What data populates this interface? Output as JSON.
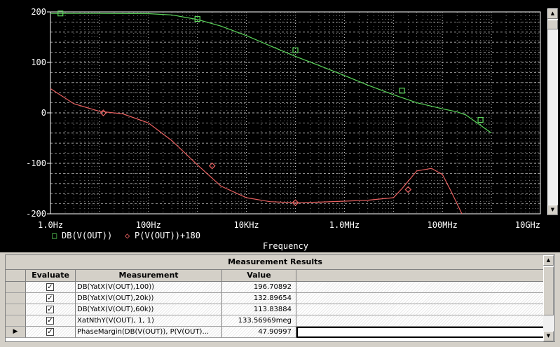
{
  "chart_data": {
    "type": "line",
    "x_scale": "log",
    "xlim": [
      1,
      10000000000
    ],
    "ylim": [
      -200,
      200
    ],
    "y_ticks": [
      "200",
      "100",
      "0",
      "-100",
      "-200"
    ],
    "x_ticks": [
      "1.0Hz",
      "100Hz",
      "10KHz",
      "1.0MHz",
      "100MHz",
      "10GHz"
    ],
    "xlabel": "Frequency",
    "series": [
      {
        "name": "DB(V(OUT))",
        "color": "#5bd65b",
        "marker": "square",
        "x": [
          1,
          10,
          100,
          300,
          1000,
          3000,
          10000,
          30000,
          100000,
          300000,
          1000000,
          3000000,
          10000000,
          30000000,
          100000000,
          200000000,
          300000000,
          1000000000
        ],
        "y": [
          197,
          197,
          196.5,
          194,
          185,
          172,
          153,
          133,
          112,
          94,
          74,
          55,
          36,
          20,
          8,
          2,
          -4,
          -40
        ],
        "marker_x": [
          1.6,
          1000,
          100000,
          15000000,
          600000000
        ],
        "marker_y": [
          197,
          186,
          124,
          44,
          -14
        ]
      },
      {
        "name": "P(V(OUT))+180",
        "color": "#e86060",
        "marker": "diamond",
        "x": [
          1,
          3,
          10,
          30,
          100,
          300,
          1000,
          3000,
          10000,
          30000,
          100000,
          300000,
          1000000,
          3000000,
          10000000,
          15000000,
          30000000,
          60000000,
          100000000,
          150000000,
          250000000
        ],
        "y": [
          48,
          18,
          3,
          -2,
          -20,
          -55,
          -103,
          -145,
          -168,
          -176,
          -178,
          -177,
          -175,
          -173,
          -168,
          -150,
          -115,
          -110,
          -122,
          -155,
          -200
        ],
        "marker_x": [
          12,
          2000,
          100000,
          20000000
        ],
        "marker_y": [
          0,
          -105,
          -178,
          -152
        ]
      }
    ]
  },
  "legend": {
    "db_label": "DB(V(OUT))",
    "phase_label": "P(V(OUT))+180",
    "db_marker": "□",
    "phase_marker": "◇"
  },
  "results": {
    "title": "Measurement Results",
    "headers": {
      "evaluate": "Evaluate",
      "measurement": "Measurement",
      "value": "Value"
    },
    "rows": [
      {
        "checked": "✓",
        "measurement": "DB(YatX(V(OUT),100))",
        "value": "196.70892",
        "selector": ""
      },
      {
        "checked": "✓",
        "measurement": "DB(YatX(V(OUT),20k))",
        "value": "132.89654",
        "selector": ""
      },
      {
        "checked": "✓",
        "measurement": "DB(YatX(V(OUT),60k))",
        "value": "113.83884",
        "selector": ""
      },
      {
        "checked": "✓",
        "measurement": "XatNthY(V(OUT), 1, 1)",
        "value": "133.56969meg",
        "selector": ""
      },
      {
        "checked": "✓",
        "measurement": "PhaseMargin(DB(V(OUT)), P(V(OUT)...",
        "value": "47.90997",
        "selector": "▶"
      }
    ]
  },
  "scroll": {
    "up": "▲",
    "down": "▼"
  }
}
